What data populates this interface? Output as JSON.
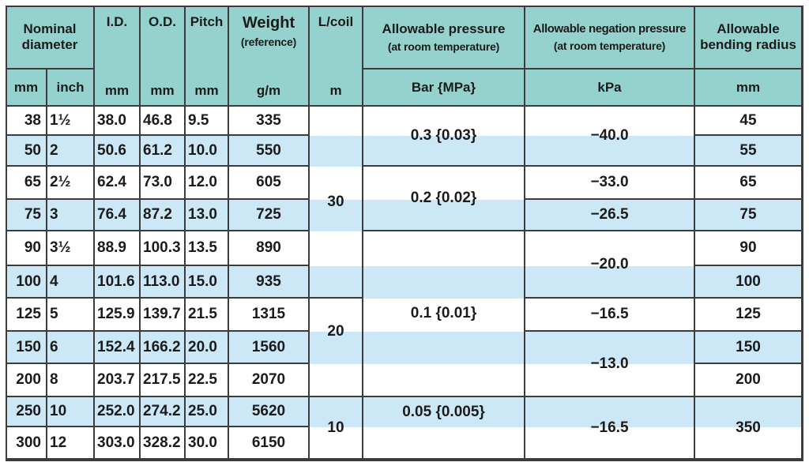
{
  "headers": [
    {
      "title": "Nominal diameter"
    },
    {
      "title": "I.D."
    },
    {
      "title": "O.D."
    },
    {
      "title": "Pitch"
    },
    {
      "title": "Weight",
      "subtitle": "(reference)"
    },
    {
      "title": "L/coil"
    },
    {
      "title": "Allowable pressure",
      "subtitle": "(at room temperature)"
    },
    {
      "title": "Allowable negation pressure",
      "subtitle": "(at room temperature)"
    },
    {
      "title": "Allowable bending radius"
    }
  ],
  "units": [
    "mm",
    "inch",
    "mm",
    "mm",
    "mm",
    "g/m",
    "m",
    "Bar {MPa}",
    "kPa",
    "mm"
  ],
  "rows": [
    [
      "38",
      "1½",
      "38.0",
      "46.8",
      "9.5",
      "335"
    ],
    [
      "50",
      "2",
      "50.6",
      "61.2",
      "10.0",
      "550"
    ],
    [
      "65",
      "2½",
      "62.4",
      "73.0",
      "12.0",
      "605"
    ],
    [
      "75",
      "3",
      "76.4",
      "87.2",
      "13.0",
      "725"
    ],
    [
      "90",
      "3½",
      "88.9",
      "100.3",
      "13.5",
      "890"
    ],
    [
      "100",
      "4",
      "101.6",
      "113.0",
      "15.0",
      "935"
    ],
    [
      "125",
      "5",
      "125.9",
      "139.7",
      "21.5",
      "1315"
    ],
    [
      "150",
      "6",
      "152.4",
      "166.2",
      "20.0",
      "1560"
    ],
    [
      "200",
      "8",
      "203.7",
      "217.5",
      "22.5",
      "2070"
    ],
    [
      "250",
      "10",
      "252.0",
      "274.2",
      "25.0",
      "5620"
    ],
    [
      "300",
      "12",
      "303.0",
      "328.2",
      "30.0",
      "6150"
    ]
  ],
  "length_per_coil": [
    "30",
    "20",
    "10"
  ],
  "allowable_pressure": [
    "0.3 {0.03}",
    "0.2 {0.02}",
    "0.1 {0.01}",
    "0.05 {0.005}"
  ],
  "negation_pressure": [
    "−40.0",
    "−33.0",
    "−26.5",
    "−20.0",
    "−16.5",
    "−13.0",
    "−16.5"
  ],
  "bending_radius": [
    "45",
    "55",
    "65",
    "75",
    "90",
    "100",
    "125",
    "150",
    "200",
    "350"
  ]
}
